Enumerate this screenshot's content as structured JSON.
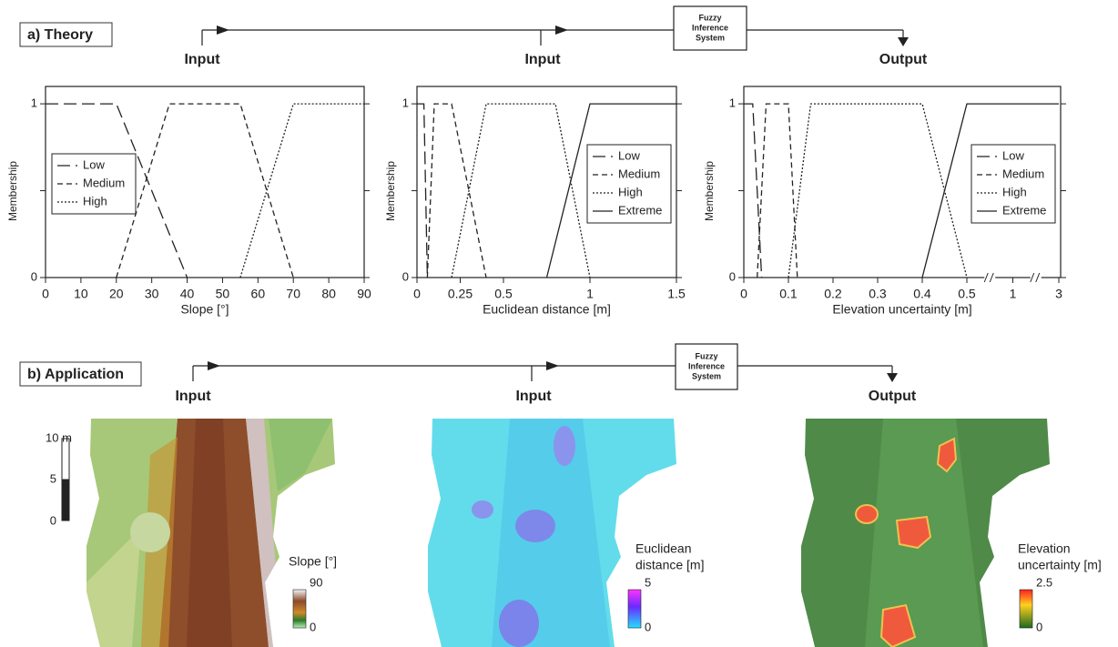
{
  "panel_a": {
    "label": "a) Theory",
    "inputs": [
      "Input",
      "Input"
    ],
    "fis": [
      "Fuzzy",
      "Inference",
      "System"
    ],
    "output": "Output"
  },
  "chart_data": [
    {
      "type": "line",
      "xlabel": "Slope [°]",
      "ylabel": "Membership",
      "xlim": [
        0,
        90
      ],
      "xticks": [
        0,
        10,
        20,
        30,
        40,
        50,
        60,
        70,
        80,
        90
      ],
      "ylim": [
        0,
        1.1
      ],
      "yticks": [
        0,
        1
      ],
      "legend": "center-left",
      "series": [
        {
          "name": "Low",
          "dash": "long",
          "color": "#222222",
          "x": [
            0,
            20,
            40
          ],
          "values": [
            1,
            1,
            0
          ]
        },
        {
          "name": "Medium",
          "dash": "medium",
          "color": "#222222",
          "x": [
            20,
            35,
            55,
            70
          ],
          "values": [
            0,
            1,
            1,
            0
          ]
        },
        {
          "name": "High",
          "dash": "dotted",
          "color": "#222222",
          "x": [
            55,
            70,
            90
          ],
          "values": [
            0,
            1,
            1
          ]
        }
      ]
    },
    {
      "type": "line",
      "xlabel": "Euclidean distance [m]",
      "ylabel": "Membership",
      "xlim": [
        0,
        1.5
      ],
      "xticks": [
        0,
        0.25,
        0.5,
        1,
        1.5
      ],
      "ylim": [
        0,
        1.1
      ],
      "yticks": [
        0,
        1
      ],
      "legend": "center-right",
      "series": [
        {
          "name": "Low",
          "dash": "long",
          "color": "#222222",
          "x": [
            0,
            0.04,
            0.06
          ],
          "values": [
            1,
            1,
            0
          ]
        },
        {
          "name": "Medium",
          "dash": "medium",
          "color": "#222222",
          "x": [
            0.06,
            0.1,
            0.2,
            0.4
          ],
          "values": [
            0,
            1,
            1,
            0
          ]
        },
        {
          "name": "High",
          "dash": "dotted",
          "color": "#222222",
          "x": [
            0.2,
            0.4,
            0.8,
            1
          ],
          "values": [
            0,
            1,
            1,
            0
          ]
        },
        {
          "name": "Extreme",
          "dash": "solid",
          "color": "#222222",
          "x": [
            0.75,
            1,
            1.5
          ],
          "values": [
            0,
            1,
            1
          ]
        }
      ]
    },
    {
      "type": "line",
      "xlabel": "Elevation uncertainty [m]",
      "ylabel": "Membership",
      "xlim": [
        0,
        3
      ],
      "x_break": 0.5,
      "xticks": [
        0,
        0.1,
        0.2,
        0.3,
        0.4,
        0.5,
        1,
        3
      ],
      "ylim": [
        0,
        1.1
      ],
      "yticks": [
        0,
        1
      ],
      "legend": "center-right",
      "series": [
        {
          "name": "Low",
          "dash": "long",
          "color": "#222222",
          "x": [
            0,
            0.02,
            0.04
          ],
          "values": [
            1,
            1,
            0
          ]
        },
        {
          "name": "Medium",
          "dash": "medium",
          "color": "#222222",
          "x": [
            0.03,
            0.05,
            0.1,
            0.12
          ],
          "values": [
            0,
            1,
            1,
            0
          ]
        },
        {
          "name": "High",
          "dash": "dotted",
          "color": "#222222",
          "x": [
            0.1,
            0.15,
            0.4,
            0.5
          ],
          "values": [
            0,
            1,
            1,
            0
          ]
        },
        {
          "name": "Extreme",
          "dash": "solid",
          "color": "#222222",
          "x": [
            0.4,
            0.5,
            3
          ],
          "values": [
            0,
            1,
            1
          ]
        }
      ]
    }
  ],
  "panel_b": {
    "label": "b) Application",
    "inputs": [
      "Input",
      "Input"
    ],
    "fis": [
      "Fuzzy",
      "Inference",
      "System"
    ],
    "output": "Output",
    "scale_bar": {
      "title": "10 m",
      "ticks": [
        5,
        0
      ]
    },
    "maps": [
      {
        "legend": [
          "Slope [°]"
        ],
        "max": 90,
        "min": 0
      },
      {
        "legend": [
          "Euclidean",
          "distance [m]"
        ],
        "max": 5,
        "min": 0
      },
      {
        "legend": [
          "Elevation",
          "uncertainty [m]"
        ],
        "max": 2.5,
        "min": 0
      }
    ]
  }
}
